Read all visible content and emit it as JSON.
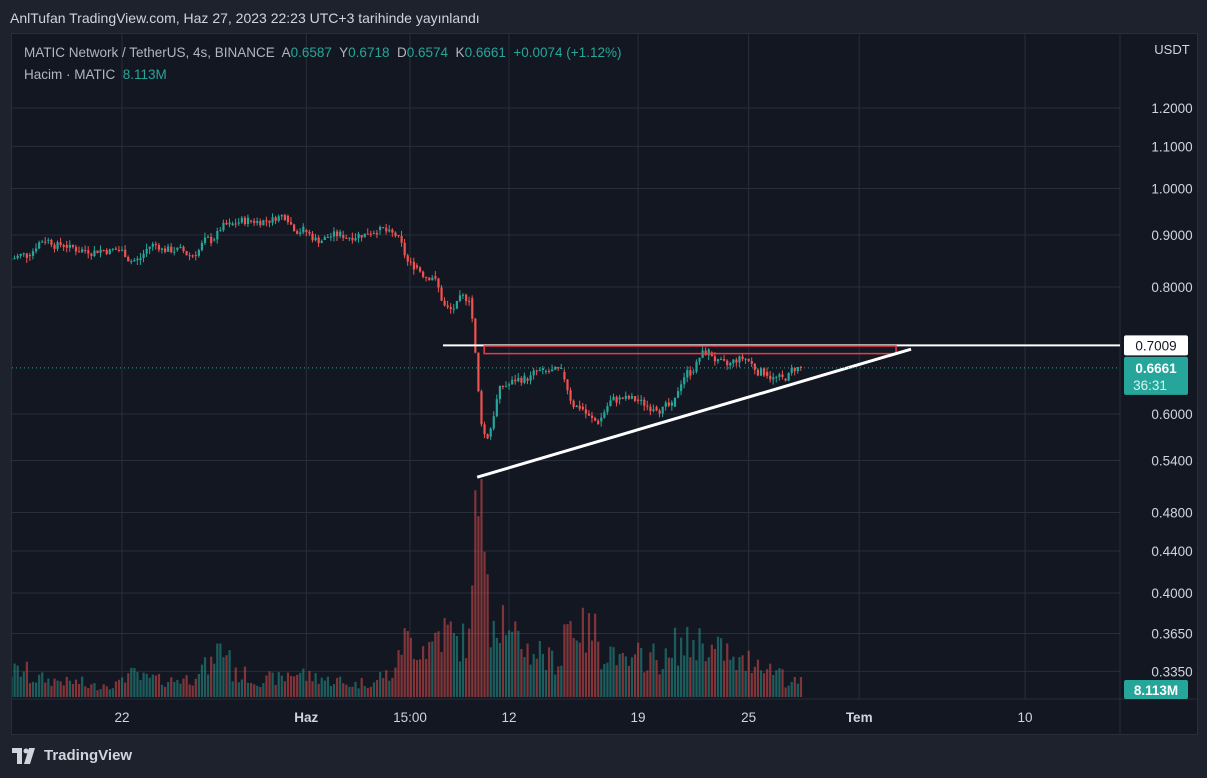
{
  "published": "AnlTufan TradingView.com, Haz 27, 2023 22:23 UTC+3 tarihinde yayınlandı",
  "legend": {
    "symbol": "MATIC Network / TetherUS, 4s, BINANCE",
    "o_label": "A",
    "o": "0.6587",
    "h_label": "Y",
    "h": "0.6718",
    "l_label": "D",
    "l": "0.6574",
    "c_label": "K",
    "c": "0.6661",
    "change": "+0.0074 (+1.12%)",
    "volume_label": "Hacim · MATIC",
    "volume": "8.113M"
  },
  "footer": {
    "logo_text": "TradingView"
  },
  "colors": {
    "up": "#26a69a",
    "down": "#ef5350",
    "bg": "#131722",
    "grid": "#2a2e39"
  },
  "chart_data": {
    "type": "candlestick",
    "scale": "log",
    "currency": "USDT",
    "y_ticks": [
      "1.2000",
      "1.1000",
      "1.0000",
      "0.9000",
      "0.8000",
      "0.6000",
      "0.5400",
      "0.4800",
      "0.4400",
      "0.4000",
      "0.3650",
      "0.3350"
    ],
    "x_ticks": [
      {
        "label": "22",
        "date": "2023-05-22"
      },
      {
        "label": "Haz",
        "date": "2023-06-01"
      },
      {
        "label": "15:00",
        "date": "2023-06-06T15:00"
      },
      {
        "label": "12",
        "date": "2023-06-12"
      },
      {
        "label": "19",
        "date": "2023-06-19"
      },
      {
        "label": "25",
        "date": "2023-06-25"
      },
      {
        "label": "Tem",
        "date": "2023-07-01"
      },
      {
        "label": "10",
        "date": "2023-07-10"
      }
    ],
    "dates": [
      "2023-05-16",
      "2023-05-17",
      "2023-05-18",
      "2023-05-19",
      "2023-05-20",
      "2023-05-21",
      "2023-05-22",
      "2023-05-23",
      "2023-05-24",
      "2023-05-25",
      "2023-05-26",
      "2023-05-27",
      "2023-05-28",
      "2023-05-29",
      "2023-05-30",
      "2023-05-31",
      "2023-06-01",
      "2023-06-02",
      "2023-06-03",
      "2023-06-04",
      "2023-06-05",
      "2023-06-06",
      "2023-06-07",
      "2023-06-08",
      "2023-06-09",
      "2023-06-10",
      "2023-06-11",
      "2023-06-12",
      "2023-06-13",
      "2023-06-14",
      "2023-06-15",
      "2023-06-16",
      "2023-06-17",
      "2023-06-18",
      "2023-06-19",
      "2023-06-20",
      "2023-06-21",
      "2023-06-22",
      "2023-06-23",
      "2023-06-24",
      "2023-06-25",
      "2023-06-26",
      "2023-06-27"
    ],
    "close": [
      0.86,
      0.89,
      0.88,
      0.87,
      0.87,
      0.87,
      0.85,
      0.88,
      0.87,
      0.86,
      0.89,
      0.92,
      0.93,
      0.93,
      0.94,
      0.91,
      0.89,
      0.9,
      0.9,
      0.91,
      0.9,
      0.84,
      0.82,
      0.76,
      0.78,
      0.57,
      0.64,
      0.65,
      0.66,
      0.66,
      0.61,
      0.59,
      0.62,
      0.62,
      0.61,
      0.61,
      0.66,
      0.69,
      0.67,
      0.68,
      0.66,
      0.65,
      0.6661
    ],
    "volume_millions": [
      14,
      10,
      9,
      8,
      6,
      7,
      12,
      10,
      9,
      10,
      16,
      25,
      12,
      9,
      10,
      13,
      11,
      9,
      7,
      8,
      12,
      30,
      28,
      35,
      30,
      90,
      45,
      30,
      25,
      20,
      40,
      35,
      25,
      18,
      22,
      20,
      28,
      30,
      25,
      18,
      20,
      15,
      8.113
    ],
    "last_price": {
      "value": "0.6661",
      "countdown": "36:31"
    },
    "last_volume": "8.113M",
    "drawings": {
      "horizontal_line": {
        "price": "0.7009"
      },
      "resistance_box": {
        "from": "2023-06-10",
        "to": "2023-07-03",
        "top": 0.7,
        "bottom": 0.688
      },
      "trendline": {
        "from_date": "2023-06-10",
        "from_price": 0.52,
        "to_date": "2023-07-03",
        "to_price": 0.695
      }
    }
  }
}
